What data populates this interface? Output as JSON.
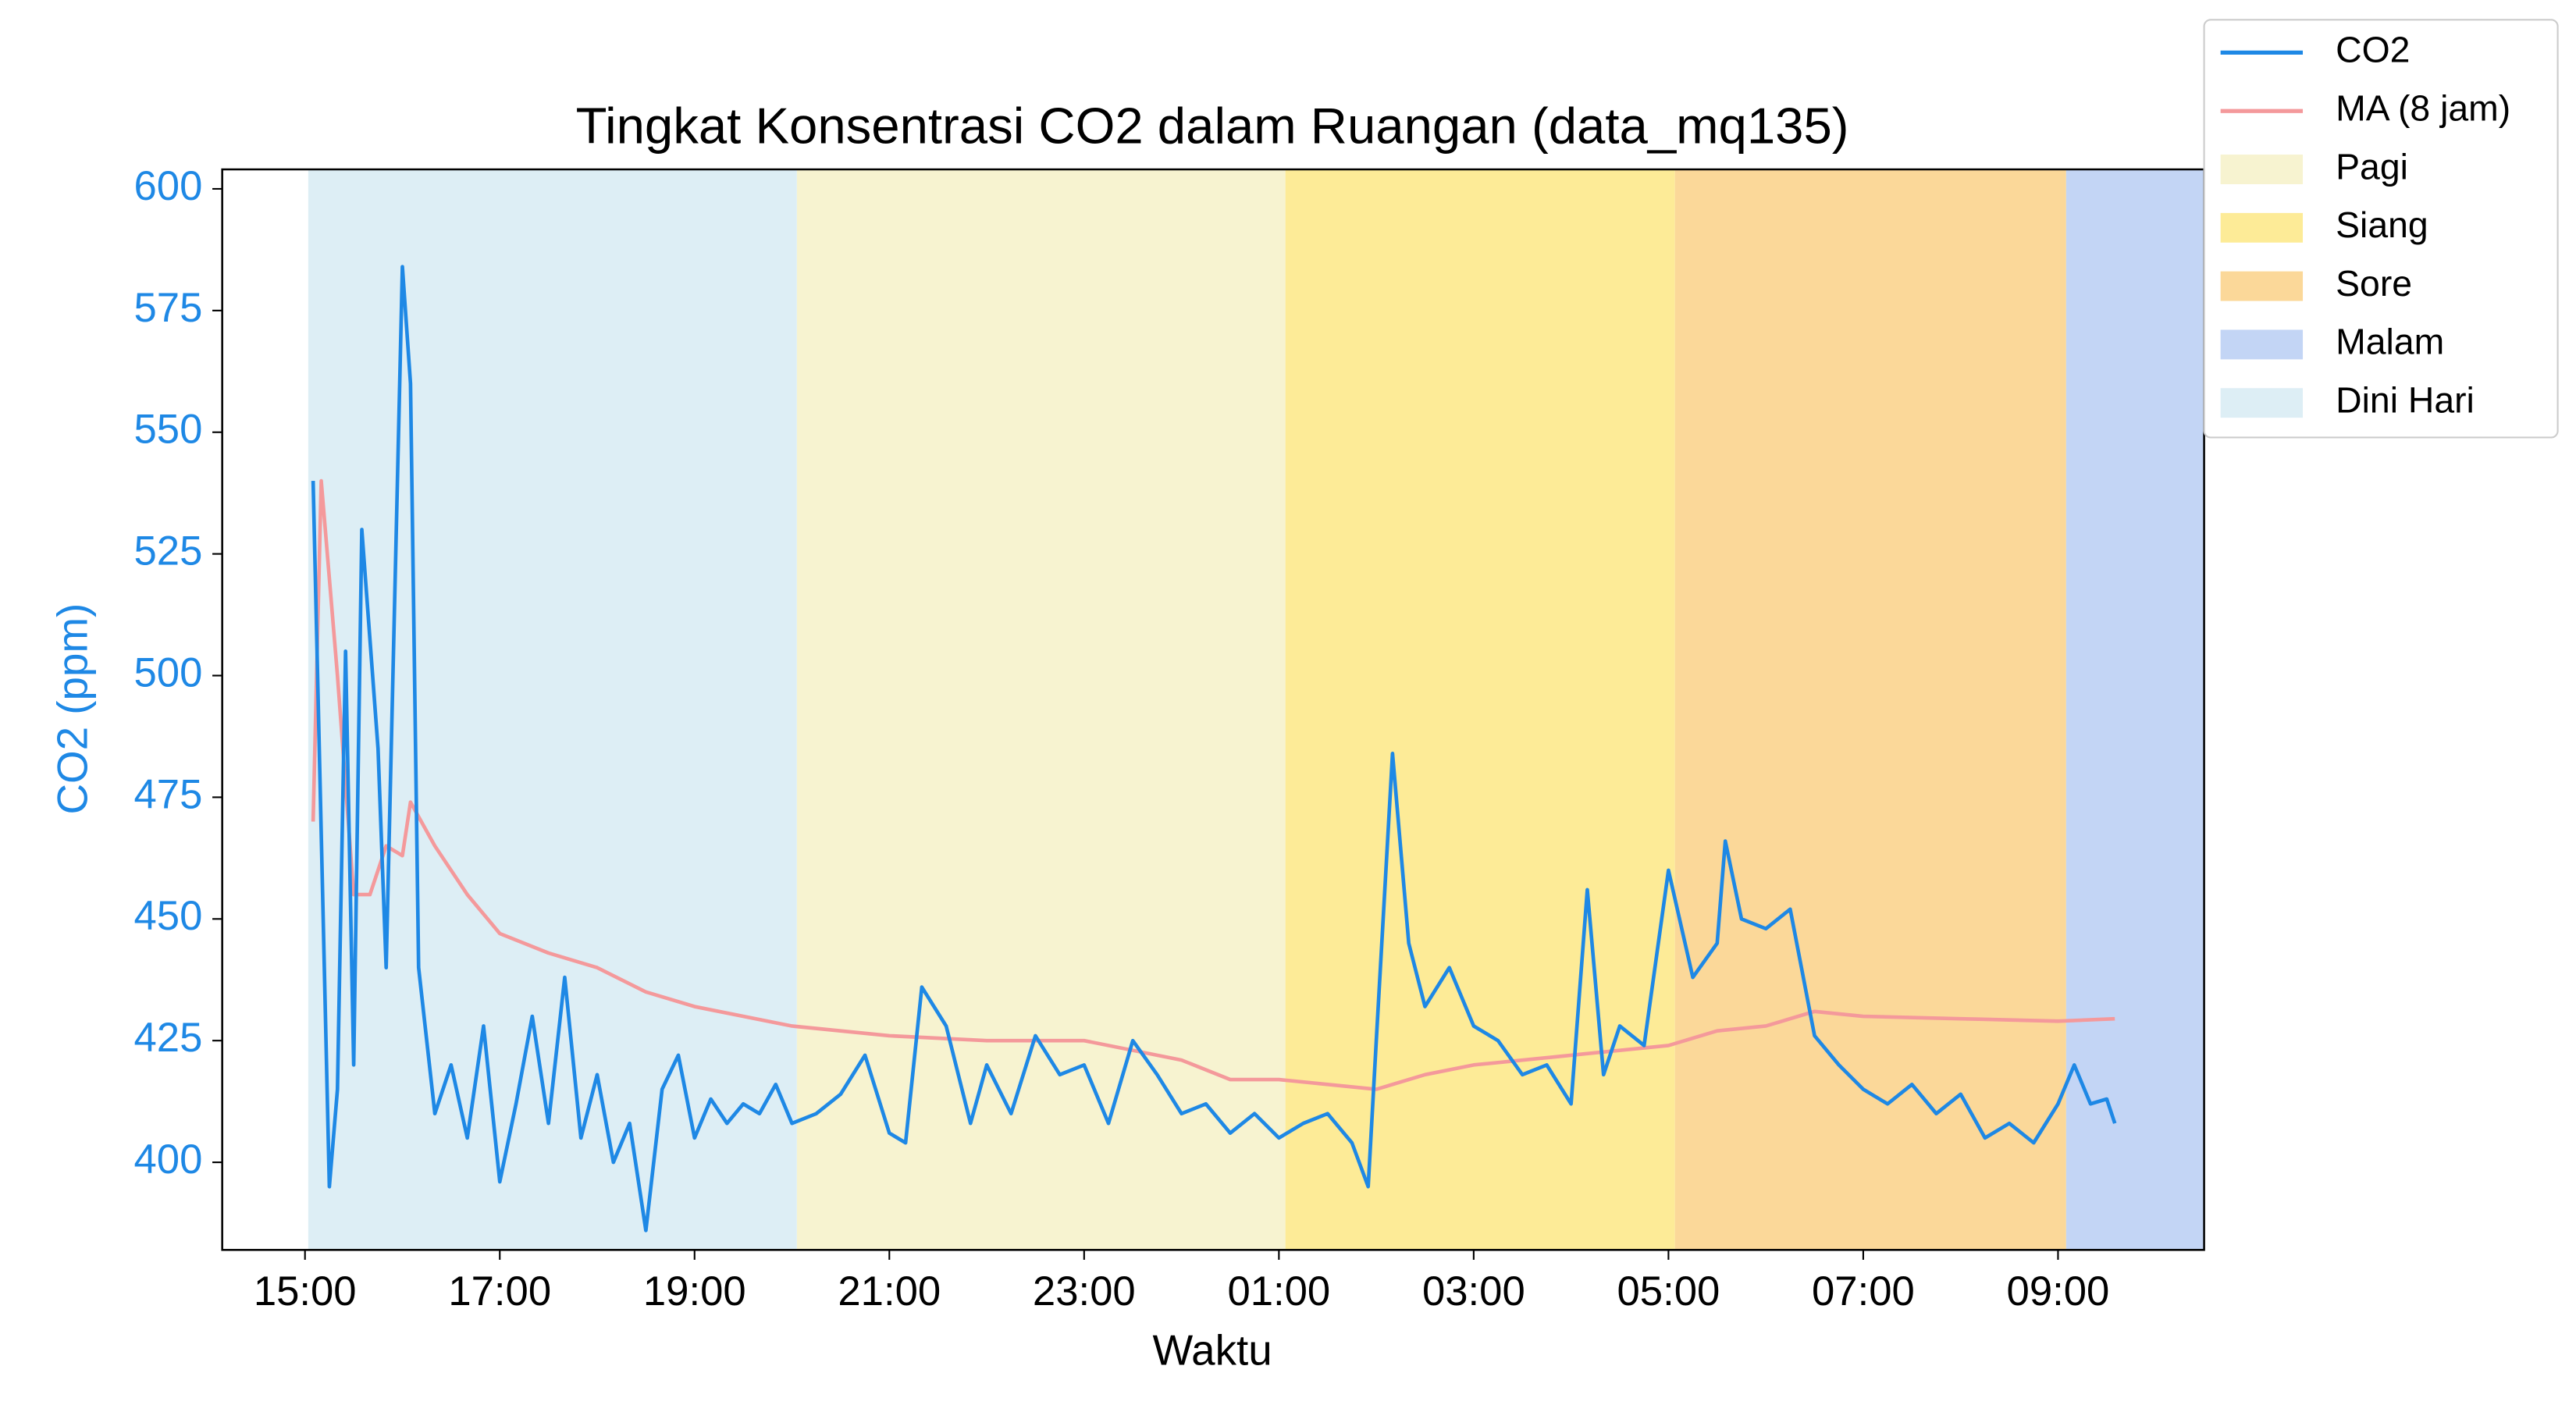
{
  "chart_data": {
    "type": "line",
    "title": "Tingkat Konsentrasi CO2 dalam Ruangan (data_mq135)",
    "x_label": "Waktu",
    "y_label": "CO2 (ppm)",
    "xlim": [
      "14:09",
      "10:30"
    ],
    "xticks": [
      "15:00",
      "17:00",
      "19:00",
      "21:00",
      "23:00",
      "01:00",
      "03:00",
      "05:00",
      "07:00",
      "09:00"
    ],
    "ylim": [
      382,
      604
    ],
    "yticks": [
      400,
      425,
      450,
      475,
      500,
      525,
      550,
      575,
      600
    ],
    "axis_color": "#1e88e5",
    "legend": "upper right outside",
    "series": [
      {
        "name": "CO2",
        "color": "#1e88e5",
        "x": [
          "15:05",
          "15:15",
          "15:20",
          "15:25",
          "15:30",
          "15:35",
          "15:45",
          "15:50",
          "16:00",
          "16:05",
          "16:10",
          "16:20",
          "16:30",
          "16:40",
          "16:50",
          "17:00",
          "17:10",
          "17:20",
          "17:30",
          "17:40",
          "17:50",
          "18:00",
          "18:10",
          "18:20",
          "18:30",
          "18:40",
          "18:50",
          "19:00",
          "19:10",
          "19:20",
          "19:30",
          "19:40",
          "19:50",
          "20:00",
          "20:15",
          "20:30",
          "20:45",
          "21:00",
          "21:10",
          "21:20",
          "21:35",
          "21:50",
          "22:00",
          "22:15",
          "22:30",
          "22:45",
          "23:00",
          "23:15",
          "23:30",
          "23:45",
          "00:00",
          "00:15",
          "00:30",
          "00:45",
          "01:00",
          "01:15",
          "01:30",
          "01:45",
          "01:55",
          "02:00",
          "02:10",
          "02:20",
          "02:30",
          "02:45",
          "03:00",
          "03:15",
          "03:30",
          "03:45",
          "04:00",
          "04:10",
          "04:20",
          "04:30",
          "04:45",
          "05:00",
          "05:15",
          "05:30",
          "05:35",
          "05:45",
          "06:00",
          "06:15",
          "06:30",
          "06:45",
          "07:00",
          "07:15",
          "07:30",
          "07:45",
          "08:00",
          "08:15",
          "08:30",
          "08:45",
          "09:00",
          "09:10",
          "09:20",
          "09:30",
          "09:35"
        ],
        "values": [
          540,
          395,
          415,
          505,
          420,
          530,
          485,
          440,
          584,
          560,
          440,
          410,
          420,
          405,
          428,
          396,
          412,
          430,
          408,
          438,
          405,
          418,
          400,
          408,
          386,
          415,
          422,
          405,
          413,
          408,
          412,
          410,
          416,
          408,
          410,
          414,
          422,
          406,
          404,
          436,
          428,
          408,
          420,
          410,
          426,
          418,
          420,
          408,
          425,
          418,
          410,
          412,
          406,
          410,
          405,
          408,
          410,
          404,
          395,
          425,
          484,
          445,
          432,
          440,
          428,
          425,
          418,
          420,
          412,
          456,
          418,
          428,
          424,
          460,
          438,
          445,
          466,
          450,
          448,
          452,
          426,
          420,
          415,
          412,
          416,
          410,
          414,
          405,
          408,
          404,
          412,
          420,
          412,
          413,
          408
        ]
      },
      {
        "name": "MA (8 jam)",
        "color": "#f4999b",
        "x": [
          "15:05",
          "15:10",
          "15:20",
          "15:30",
          "15:40",
          "15:50",
          "16:00",
          "16:05",
          "16:20",
          "16:40",
          "17:00",
          "17:30",
          "18:00",
          "18:30",
          "19:00",
          "20:00",
          "21:00",
          "22:00",
          "23:00",
          "00:00",
          "00:30",
          "01:00",
          "01:30",
          "02:00",
          "02:30",
          "03:00",
          "04:00",
          "05:00",
          "05:30",
          "06:00",
          "06:30",
          "07:00",
          "08:00",
          "09:00",
          "09:35"
        ],
        "values": [
          470,
          540,
          500,
          455,
          455,
          465,
          463,
          474,
          465,
          455,
          447,
          443,
          440,
          435,
          432,
          428,
          426,
          425,
          425,
          421,
          417,
          417,
          416,
          415,
          418,
          420,
          422,
          424,
          427,
          428,
          431,
          430,
          429.5,
          429,
          429.5
        ]
      }
    ],
    "periods": [
      {
        "name": "Pagi",
        "color": "#f7f3d0",
        "start": "20:03",
        "end": "01:04"
      },
      {
        "name": "Siang",
        "color": "#fdeb97",
        "start": "01:04",
        "end": "05:04"
      },
      {
        "name": "Sore",
        "color": "#fbd899",
        "start": "05:04",
        "end": "09:05"
      },
      {
        "name": "Malam",
        "color": "#c3d5f5",
        "start": "09:05",
        "end": "10:30"
      },
      {
        "name": "Dini Hari",
        "color": "#ddeef5",
        "start": "15:02",
        "end": "20:03"
      }
    ]
  }
}
